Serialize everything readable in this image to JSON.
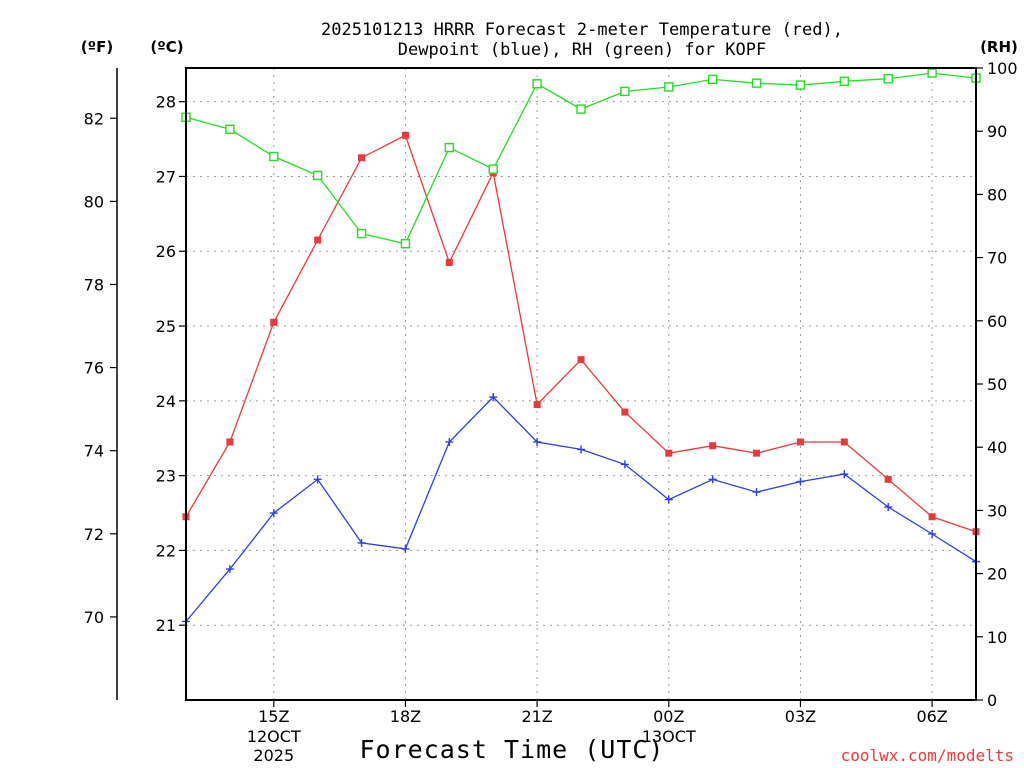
{
  "chart_data": {
    "type": "line",
    "title_line1": "2025101213 HRRR Forecast 2-meter Temperature (red),",
    "title_line2": "Dewpoint (blue), RH (green) for KOPF",
    "xlabel": "Forecast Time (UTC)",
    "watermark": "coolwx.com/modelts",
    "left_f_unit": "(ºF)",
    "left_c_unit": "(ºC)",
    "right_unit": "(RH)",
    "x_range": [
      13,
      31
    ],
    "x_ticks": [
      {
        "x": 15,
        "label": "15Z",
        "sub1": "12OCT",
        "sub2": "2025"
      },
      {
        "x": 18,
        "label": "18Z",
        "sub1": "",
        "sub2": ""
      },
      {
        "x": 21,
        "label": "21Z",
        "sub1": "",
        "sub2": ""
      },
      {
        "x": 24,
        "label": "00Z",
        "sub1": "13OCT",
        "sub2": ""
      },
      {
        "x": 27,
        "label": "03Z",
        "sub1": "",
        "sub2": ""
      },
      {
        "x": 30,
        "label": "06Z",
        "sub1": "",
        "sub2": ""
      }
    ],
    "celsius_range": [
      20.0,
      28.45
    ],
    "celsius_ticks": [
      21,
      22,
      23,
      24,
      25,
      26,
      27,
      28
    ],
    "fahrenheit_ticks": [
      70,
      72,
      74,
      76,
      78,
      80,
      82
    ],
    "rh_range": [
      0,
      100
    ],
    "rh_ticks": [
      0,
      10,
      20,
      30,
      40,
      50,
      60,
      70,
      80,
      90,
      100
    ],
    "grid": true,
    "series": [
      {
        "name": "Temperature",
        "axis": "celsius",
        "color": "#e83a3a",
        "marker": "filled-square",
        "x": [
          13,
          14,
          15,
          16,
          17,
          18,
          19,
          20,
          21,
          22,
          23,
          24,
          25,
          26,
          27,
          28,
          29,
          30,
          31
        ],
        "values": [
          22.45,
          23.45,
          25.05,
          26.15,
          27.25,
          27.55,
          25.85,
          27.05,
          23.95,
          24.55,
          23.85,
          23.3,
          23.4,
          23.3,
          23.45,
          23.45,
          22.95,
          22.45,
          22.25
        ]
      },
      {
        "name": "Dewpoint",
        "axis": "celsius",
        "color": "#2b3fe0",
        "marker": "plus",
        "x": [
          13,
          14,
          15,
          16,
          17,
          18,
          19,
          20,
          21,
          22,
          23,
          24,
          25,
          26,
          27,
          28,
          29,
          30,
          31
        ],
        "values": [
          21.05,
          21.75,
          22.5,
          22.95,
          22.1,
          22.02,
          23.45,
          24.05,
          23.45,
          23.35,
          23.15,
          22.68,
          22.95,
          22.78,
          22.92,
          23.02,
          22.58,
          22.22,
          21.85
        ]
      },
      {
        "name": "RH",
        "axis": "rh",
        "color": "#22dd22",
        "marker": "open-square",
        "x": [
          13,
          14,
          15,
          16,
          17,
          18,
          19,
          20,
          21,
          22,
          23,
          24,
          25,
          26,
          27,
          28,
          29,
          30,
          31
        ],
        "values": [
          92.2,
          90.3,
          86.0,
          83.0,
          73.8,
          72.2,
          87.4,
          84.0,
          97.5,
          93.5,
          96.3,
          97.0,
          98.2,
          97.6,
          97.3,
          97.9,
          98.3,
          99.2,
          98.4
        ]
      }
    ]
  }
}
